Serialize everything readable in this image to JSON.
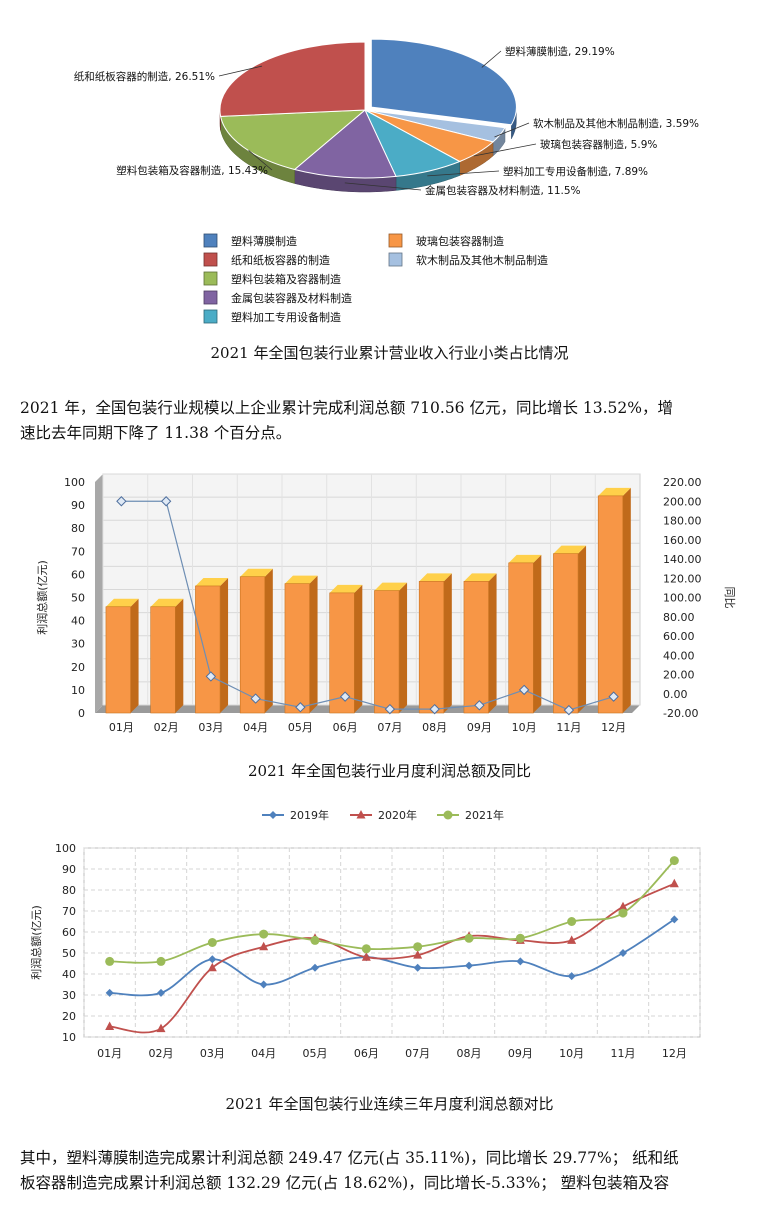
{
  "captions": {
    "pie": "2021 年全国包装行业累计营业收入行业小类占比情况",
    "bar": "2021 年全国包装行业月度利润总额及同比",
    "line": "2021 年全国包装行业连续三年月度利润总额对比"
  },
  "paragraph1": {
    "line1": "2021 年，全国包装行业规模以上企业累计完成利润总额 710.56 亿元，同比增长 13.52%，增",
    "line2": "速比去年同期下降了 11.38 个百分点。"
  },
  "paragraph2": {
    "line1": "其中，塑料薄膜制造完成累计利润总额 249.47 亿元(占 35.11%)，同比增长 29.77%；  纸和纸",
    "line2": "板容器制造完成累计利润总额 132.29 亿元(占 18.62%)，同比增长-5.33%；  塑料包装箱及容"
  },
  "chart_data": [
    {
      "type": "pie",
      "slices": [
        {
          "name": "塑料薄膜制造",
          "label": "塑料薄膜制造, 29.19%",
          "value": 29.19,
          "color": "#4F81BD"
        },
        {
          "name": "软木制品及其他木制品制造",
          "label": "软木制品及其他木制品制造, 3.59%",
          "value": 3.59,
          "color": "#A5C0E0"
        },
        {
          "name": "玻璃包装容器制造",
          "label": "玻璃包装容器制造, 5.9%",
          "value": 5.9,
          "color": "#F79646"
        },
        {
          "name": "塑料加工专用设备制造",
          "label": "塑料加工专用设备制造, 7.89%",
          "value": 7.89,
          "color": "#4BACC6"
        },
        {
          "name": "金属包装容器及材料制造",
          "label": "金属包装容器及材料制造, 11.5%",
          "value": 11.5,
          "color": "#8064A2"
        },
        {
          "name": "塑料包装箱及容器制造",
          "label": "塑料包装箱及容器制造, 15.43%",
          "value": 15.43,
          "color": "#9BBB59"
        },
        {
          "name": "纸和纸板容器的制造",
          "label": "纸和纸板容器的制造, 26.51%",
          "value": 26.51,
          "color": "#C0504D"
        }
      ],
      "legend": {
        "col1": [
          "塑料薄膜制造",
          "纸和纸板容器的制造",
          "塑料包装箱及容器制造",
          "金属包装容器及材料制造",
          "塑料加工专用设备制造"
        ],
        "col2": [
          "玻璃包装容器制造",
          "软木制品及其他木制品制造"
        ],
        "col1_colors": [
          "#4F81BD",
          "#C0504D",
          "#9BBB59",
          "#8064A2",
          "#4BACC6"
        ],
        "col2_colors": [
          "#F79646",
          "#A5C0E0"
        ]
      }
    },
    {
      "type": "bar",
      "categories": [
        "01月",
        "02月",
        "03月",
        "04月",
        "05月",
        "06月",
        "07月",
        "08月",
        "09月",
        "10月",
        "11月",
        "12月"
      ],
      "series": [
        {
          "name": "",
          "values": [
            46,
            46,
            55,
            59,
            56,
            52,
            53,
            57,
            57,
            65,
            69,
            94
          ],
          "color": "#F79646"
        },
        {
          "name": "",
          "axis": "right",
          "values": [
            200,
            200,
            18,
            -5,
            -14,
            -3,
            -16,
            -16,
            -12,
            4,
            -17,
            -3
          ],
          "color": "#6E8EB4"
        }
      ],
      "ylabel": "利润总额(亿元)",
      "y2label": "同比",
      "ylim": [
        0,
        100
      ],
      "y2lim": [
        -20,
        220
      ],
      "yticks": [
        "0",
        "10",
        "20",
        "30",
        "40",
        "50",
        "60",
        "70",
        "80",
        "90",
        "100"
      ],
      "y2ticks": [
        "-20.00",
        "0.00",
        "20.00",
        "40.00",
        "60.00",
        "80.00",
        "100.00",
        "120.00",
        "140.00",
        "160.00",
        "180.00",
        "200.00",
        "220.00"
      ]
    },
    {
      "type": "line",
      "categories": [
        "01月",
        "02月",
        "03月",
        "04月",
        "05月",
        "06月",
        "07月",
        "08月",
        "09月",
        "10月",
        "11月",
        "12月"
      ],
      "series": [
        {
          "name": "2019年",
          "values": [
            31,
            31,
            47,
            35,
            43,
            48,
            43,
            44,
            46,
            39,
            50,
            66
          ],
          "color": "#4F81BD",
          "marker": "diamond"
        },
        {
          "name": "2020年",
          "values": [
            15,
            14,
            43,
            53,
            57,
            48,
            49,
            58,
            56,
            56,
            72,
            83
          ],
          "color": "#C0504D",
          "marker": "triangle"
        },
        {
          "name": "2021年",
          "values": [
            46,
            46,
            55,
            59,
            56,
            52,
            53,
            57,
            57,
            65,
            69,
            94
          ],
          "color": "#9BBB59",
          "marker": "circle"
        }
      ],
      "ylabel": "利润总额(亿元)",
      "ylim": [
        10,
        100
      ],
      "yticks": [
        "10",
        "20",
        "30",
        "40",
        "50",
        "60",
        "70",
        "80",
        "90",
        "100"
      ],
      "legend_position": "top"
    }
  ]
}
